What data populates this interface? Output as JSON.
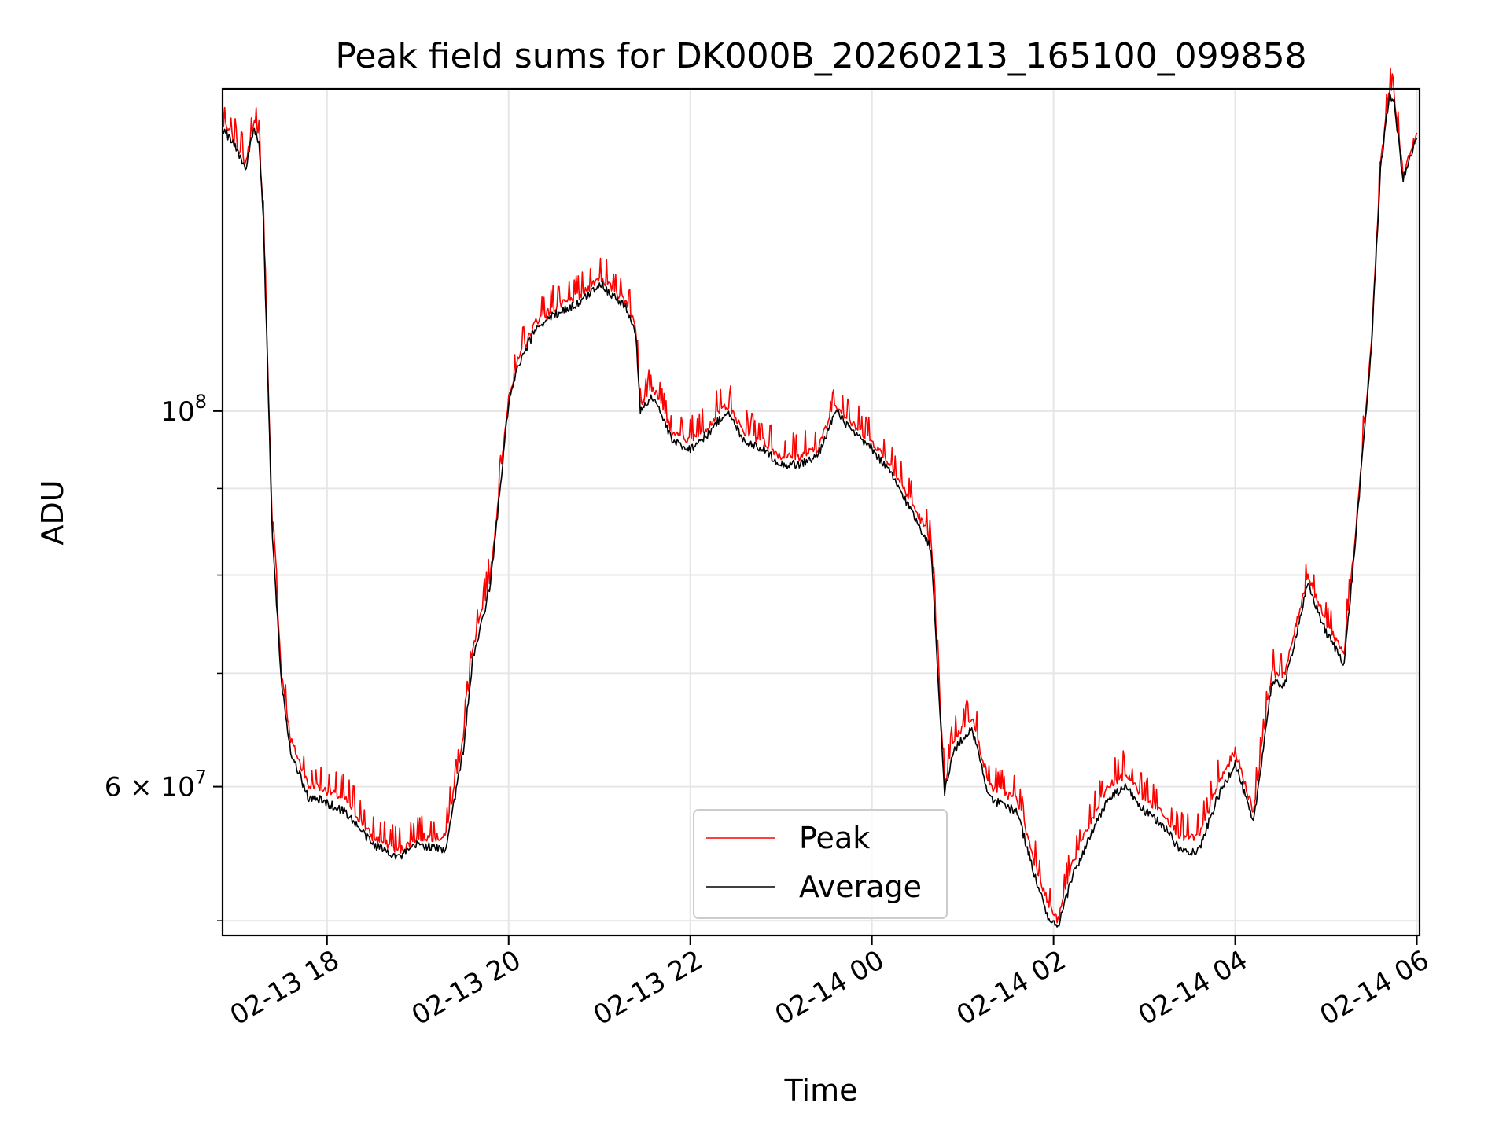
{
  "chart_data": {
    "type": "line",
    "title": "Peak field sums for DK000B_20260213_165100_099858",
    "xlabel": "Time",
    "ylabel": "ADU",
    "yscale": "log",
    "ylim": [
      49000000,
      155000000
    ],
    "xlim": [
      16.85,
      30.03
    ],
    "grid": true,
    "legend_position": "lower-center",
    "x_ticks": [
      {
        "value": 18,
        "label": "02-13 18"
      },
      {
        "value": 20,
        "label": "02-13 20"
      },
      {
        "value": 22,
        "label": "02-13 22"
      },
      {
        "value": 24,
        "label": "02-14 00"
      },
      {
        "value": 26,
        "label": "02-14 02"
      },
      {
        "value": 28,
        "label": "02-14 04"
      },
      {
        "value": 30,
        "label": "02-14 06"
      }
    ],
    "y_major_ticks": [
      {
        "value": 100000000,
        "base": "10",
        "exp": "8",
        "mult": ""
      },
      {
        "value": 60000000,
        "base": "10",
        "exp": "7",
        "mult": "6 × "
      }
    ],
    "y_minor_ticks": [
      50000000,
      70000000,
      80000000,
      90000000
    ],
    "series": [
      {
        "name": "Peak",
        "color": "#ff0000",
        "spiky": true,
        "x": [
          16.85,
          17.0,
          17.1,
          17.2,
          17.25,
          17.3,
          17.4,
          17.5,
          17.6,
          17.8,
          17.9,
          18.2,
          18.5,
          18.8,
          19.0,
          19.3,
          19.5,
          19.6,
          19.8,
          20.0,
          20.1,
          20.3,
          20.5,
          20.8,
          21.0,
          21.3,
          21.4,
          21.45,
          21.5,
          21.6,
          21.8,
          22.0,
          22.2,
          22.4,
          22.6,
          22.8,
          23.0,
          23.2,
          23.4,
          23.6,
          23.8,
          24.0,
          24.2,
          24.4,
          24.5,
          24.65,
          24.8,
          24.9,
          25.1,
          25.3,
          25.6,
          25.8,
          25.95,
          26.05,
          26.2,
          26.4,
          26.6,
          26.8,
          27.0,
          27.2,
          27.4,
          27.6,
          27.8,
          28.0,
          28.2,
          28.4,
          28.55,
          28.65,
          28.8,
          29.0,
          29.2,
          29.3,
          29.5,
          29.6,
          29.7,
          29.75,
          29.85,
          30.0
        ],
        "y": [
          148000000,
          144000000,
          140000000,
          148000000,
          145000000,
          130000000,
          85000000,
          70000000,
          64000000,
          60000000,
          60000000,
          59000000,
          56000000,
          55000000,
          56000000,
          56000000,
          64000000,
          72000000,
          80000000,
          102000000,
          107000000,
          113000000,
          115000000,
          117000000,
          120000000,
          116000000,
          112000000,
          101000000,
          102000000,
          103000000,
          97000000,
          96000000,
          98000000,
          101000000,
          97000000,
          96000000,
          94000000,
          94000000,
          95000000,
          101000000,
          98000000,
          96000000,
          93000000,
          89000000,
          87000000,
          84000000,
          60000000,
          64000000,
          66000000,
          60000000,
          59000000,
          54000000,
          51000000,
          50000000,
          54000000,
          57000000,
          60000000,
          61000000,
          59000000,
          58000000,
          56000000,
          56000000,
          60000000,
          63000000,
          58000000,
          70000000,
          70000000,
          74000000,
          80000000,
          75000000,
          72000000,
          82000000,
          110000000,
          140000000,
          155000000,
          153000000,
          138000000,
          146000000
        ]
      },
      {
        "name": "Average",
        "color": "#000000",
        "spiky": false,
        "x": [
          16.85,
          17.0,
          17.1,
          17.2,
          17.25,
          17.3,
          17.4,
          17.5,
          17.6,
          17.8,
          17.9,
          18.2,
          18.5,
          18.8,
          19.0,
          19.3,
          19.5,
          19.6,
          19.8,
          20.0,
          20.1,
          20.3,
          20.5,
          20.8,
          21.0,
          21.3,
          21.4,
          21.45,
          21.5,
          21.6,
          21.8,
          22.0,
          22.2,
          22.4,
          22.6,
          22.8,
          23.0,
          23.2,
          23.4,
          23.6,
          23.8,
          24.0,
          24.2,
          24.4,
          24.5,
          24.65,
          24.8,
          24.9,
          25.1,
          25.3,
          25.6,
          25.8,
          25.95,
          26.05,
          26.2,
          26.4,
          26.6,
          26.8,
          27.0,
          27.2,
          27.4,
          27.6,
          27.8,
          28.0,
          28.2,
          28.4,
          28.55,
          28.65,
          28.8,
          29.0,
          29.2,
          29.3,
          29.5,
          29.6,
          29.7,
          29.75,
          29.85,
          30.0
        ],
        "y": [
          147000000,
          143000000,
          139000000,
          147000000,
          144000000,
          129000000,
          84000000,
          69000000,
          63000000,
          59000000,
          59000000,
          58000000,
          55500000,
          54500000,
          55500000,
          55000000,
          63000000,
          71000000,
          79000000,
          101000000,
          106000000,
          112000000,
          114000000,
          116000000,
          119000000,
          115000000,
          111000000,
          100000000,
          101000000,
          102000000,
          96000000,
          95000000,
          97000000,
          100000000,
          96000000,
          95000000,
          93000000,
          93000000,
          94000000,
          100000000,
          97000000,
          95000000,
          92000000,
          88000000,
          86000000,
          83000000,
          59500000,
          63000000,
          65000000,
          59000000,
          58000000,
          53000000,
          50000000,
          49500000,
          53000000,
          56000000,
          59000000,
          60000000,
          58000000,
          57000000,
          55000000,
          55000000,
          59000000,
          62000000,
          57000000,
          69000000,
          69000000,
          73000000,
          79000000,
          74000000,
          71000000,
          81000000,
          109000000,
          139000000,
          154000000,
          152000000,
          137000000,
          145000000
        ]
      }
    ]
  }
}
